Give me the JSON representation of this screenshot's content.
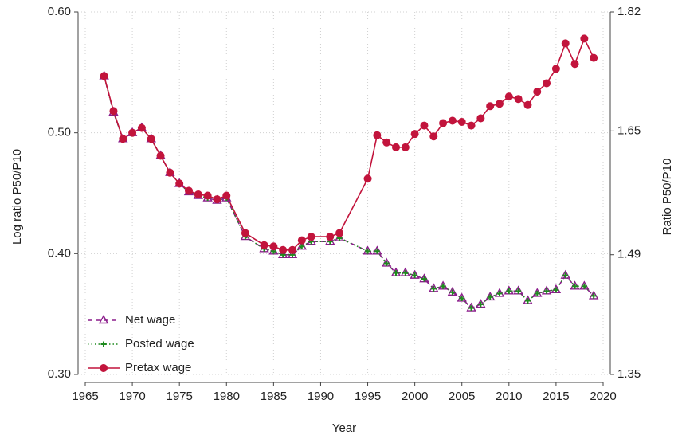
{
  "chart_data": {
    "type": "line",
    "x_label": "Year",
    "y_label": "Log ratio P50/P10",
    "y2_label": "Ratio P50/P10",
    "x": [
      1967,
      1968,
      1969,
      1970,
      1971,
      1972,
      1973,
      1974,
      1975,
      1976,
      1977,
      1978,
      1979,
      1980,
      1982,
      1984,
      1985,
      1986,
      1987,
      1988,
      1989,
      1991,
      1992,
      1995,
      1996,
      1997,
      1998,
      1999,
      2000,
      2001,
      2002,
      2003,
      2004,
      2005,
      2006,
      2007,
      2008,
      2009,
      2010,
      2011,
      2012,
      2013,
      2014,
      2015,
      2016,
      2017,
      2018,
      2019
    ],
    "series": [
      {
        "name": "Net wage",
        "color": "#8b1c8b",
        "line_style": "dashed",
        "marker": "triangle",
        "values": [
          0.547,
          0.517,
          0.495,
          0.5,
          0.504,
          0.495,
          0.481,
          0.467,
          0.458,
          0.451,
          0.448,
          0.446,
          0.444,
          0.446,
          0.414,
          0.404,
          0.402,
          0.399,
          0.399,
          0.406,
          0.41,
          0.41,
          0.413,
          0.402,
          0.402,
          0.392,
          0.384,
          0.384,
          0.382,
          0.379,
          0.371,
          0.373,
          0.368,
          0.363,
          0.355,
          0.358,
          0.364,
          0.367,
          0.369,
          0.369,
          0.361,
          0.367,
          0.369,
          0.37,
          0.382,
          0.373,
          0.373,
          0.365
        ]
      },
      {
        "name": "Posted wage",
        "color": "#1f8a1f",
        "line_style": "dotted",
        "marker": "plus",
        "values": [
          0.547,
          0.517,
          0.495,
          0.5,
          0.504,
          0.495,
          0.481,
          0.467,
          0.458,
          0.451,
          0.448,
          0.446,
          0.444,
          0.446,
          0.414,
          0.404,
          0.402,
          0.399,
          0.399,
          0.406,
          0.41,
          0.41,
          0.413,
          0.402,
          0.402,
          0.392,
          0.384,
          0.384,
          0.382,
          0.379,
          0.371,
          0.373,
          0.368,
          0.363,
          0.355,
          0.358,
          0.364,
          0.367,
          0.369,
          0.369,
          0.361,
          0.367,
          0.369,
          0.37,
          0.382,
          0.373,
          0.373,
          0.365
        ]
      },
      {
        "name": "Pretax wage",
        "color": "#c2143c",
        "line_style": "solid",
        "marker": "circle",
        "values": [
          0.547,
          0.518,
          0.495,
          0.5,
          0.504,
          0.495,
          0.481,
          0.467,
          0.458,
          0.452,
          0.449,
          0.448,
          0.445,
          0.448,
          0.417,
          0.407,
          0.406,
          0.403,
          0.403,
          0.411,
          0.414,
          0.414,
          0.417,
          0.462,
          0.498,
          0.492,
          0.488,
          0.488,
          0.499,
          0.506,
          0.497,
          0.508,
          0.51,
          0.509,
          0.506,
          0.512,
          0.522,
          0.524,
          0.53,
          0.528,
          0.523,
          0.534,
          0.541,
          0.553,
          0.574,
          0.557,
          0.578,
          0.562
        ]
      }
    ],
    "xlim": [
      1965,
      2020
    ],
    "xticks": [
      1965,
      1970,
      1975,
      1980,
      1985,
      1990,
      1995,
      2000,
      2005,
      2010,
      2015,
      2020
    ],
    "ylim": [
      0.3,
      0.6
    ],
    "yticks": [
      {
        "value": 0.3,
        "label": "0.30"
      },
      {
        "value": 0.4,
        "label": "0.40"
      },
      {
        "value": 0.5,
        "label": "0.50"
      },
      {
        "value": 0.6,
        "label": "0.60"
      }
    ],
    "y2lim": [
      1.35,
      1.82
    ],
    "y2_log": true,
    "y2ticks": [
      1.35,
      1.49,
      1.65,
      1.82
    ],
    "grid": true,
    "legend": "bottom-left"
  }
}
